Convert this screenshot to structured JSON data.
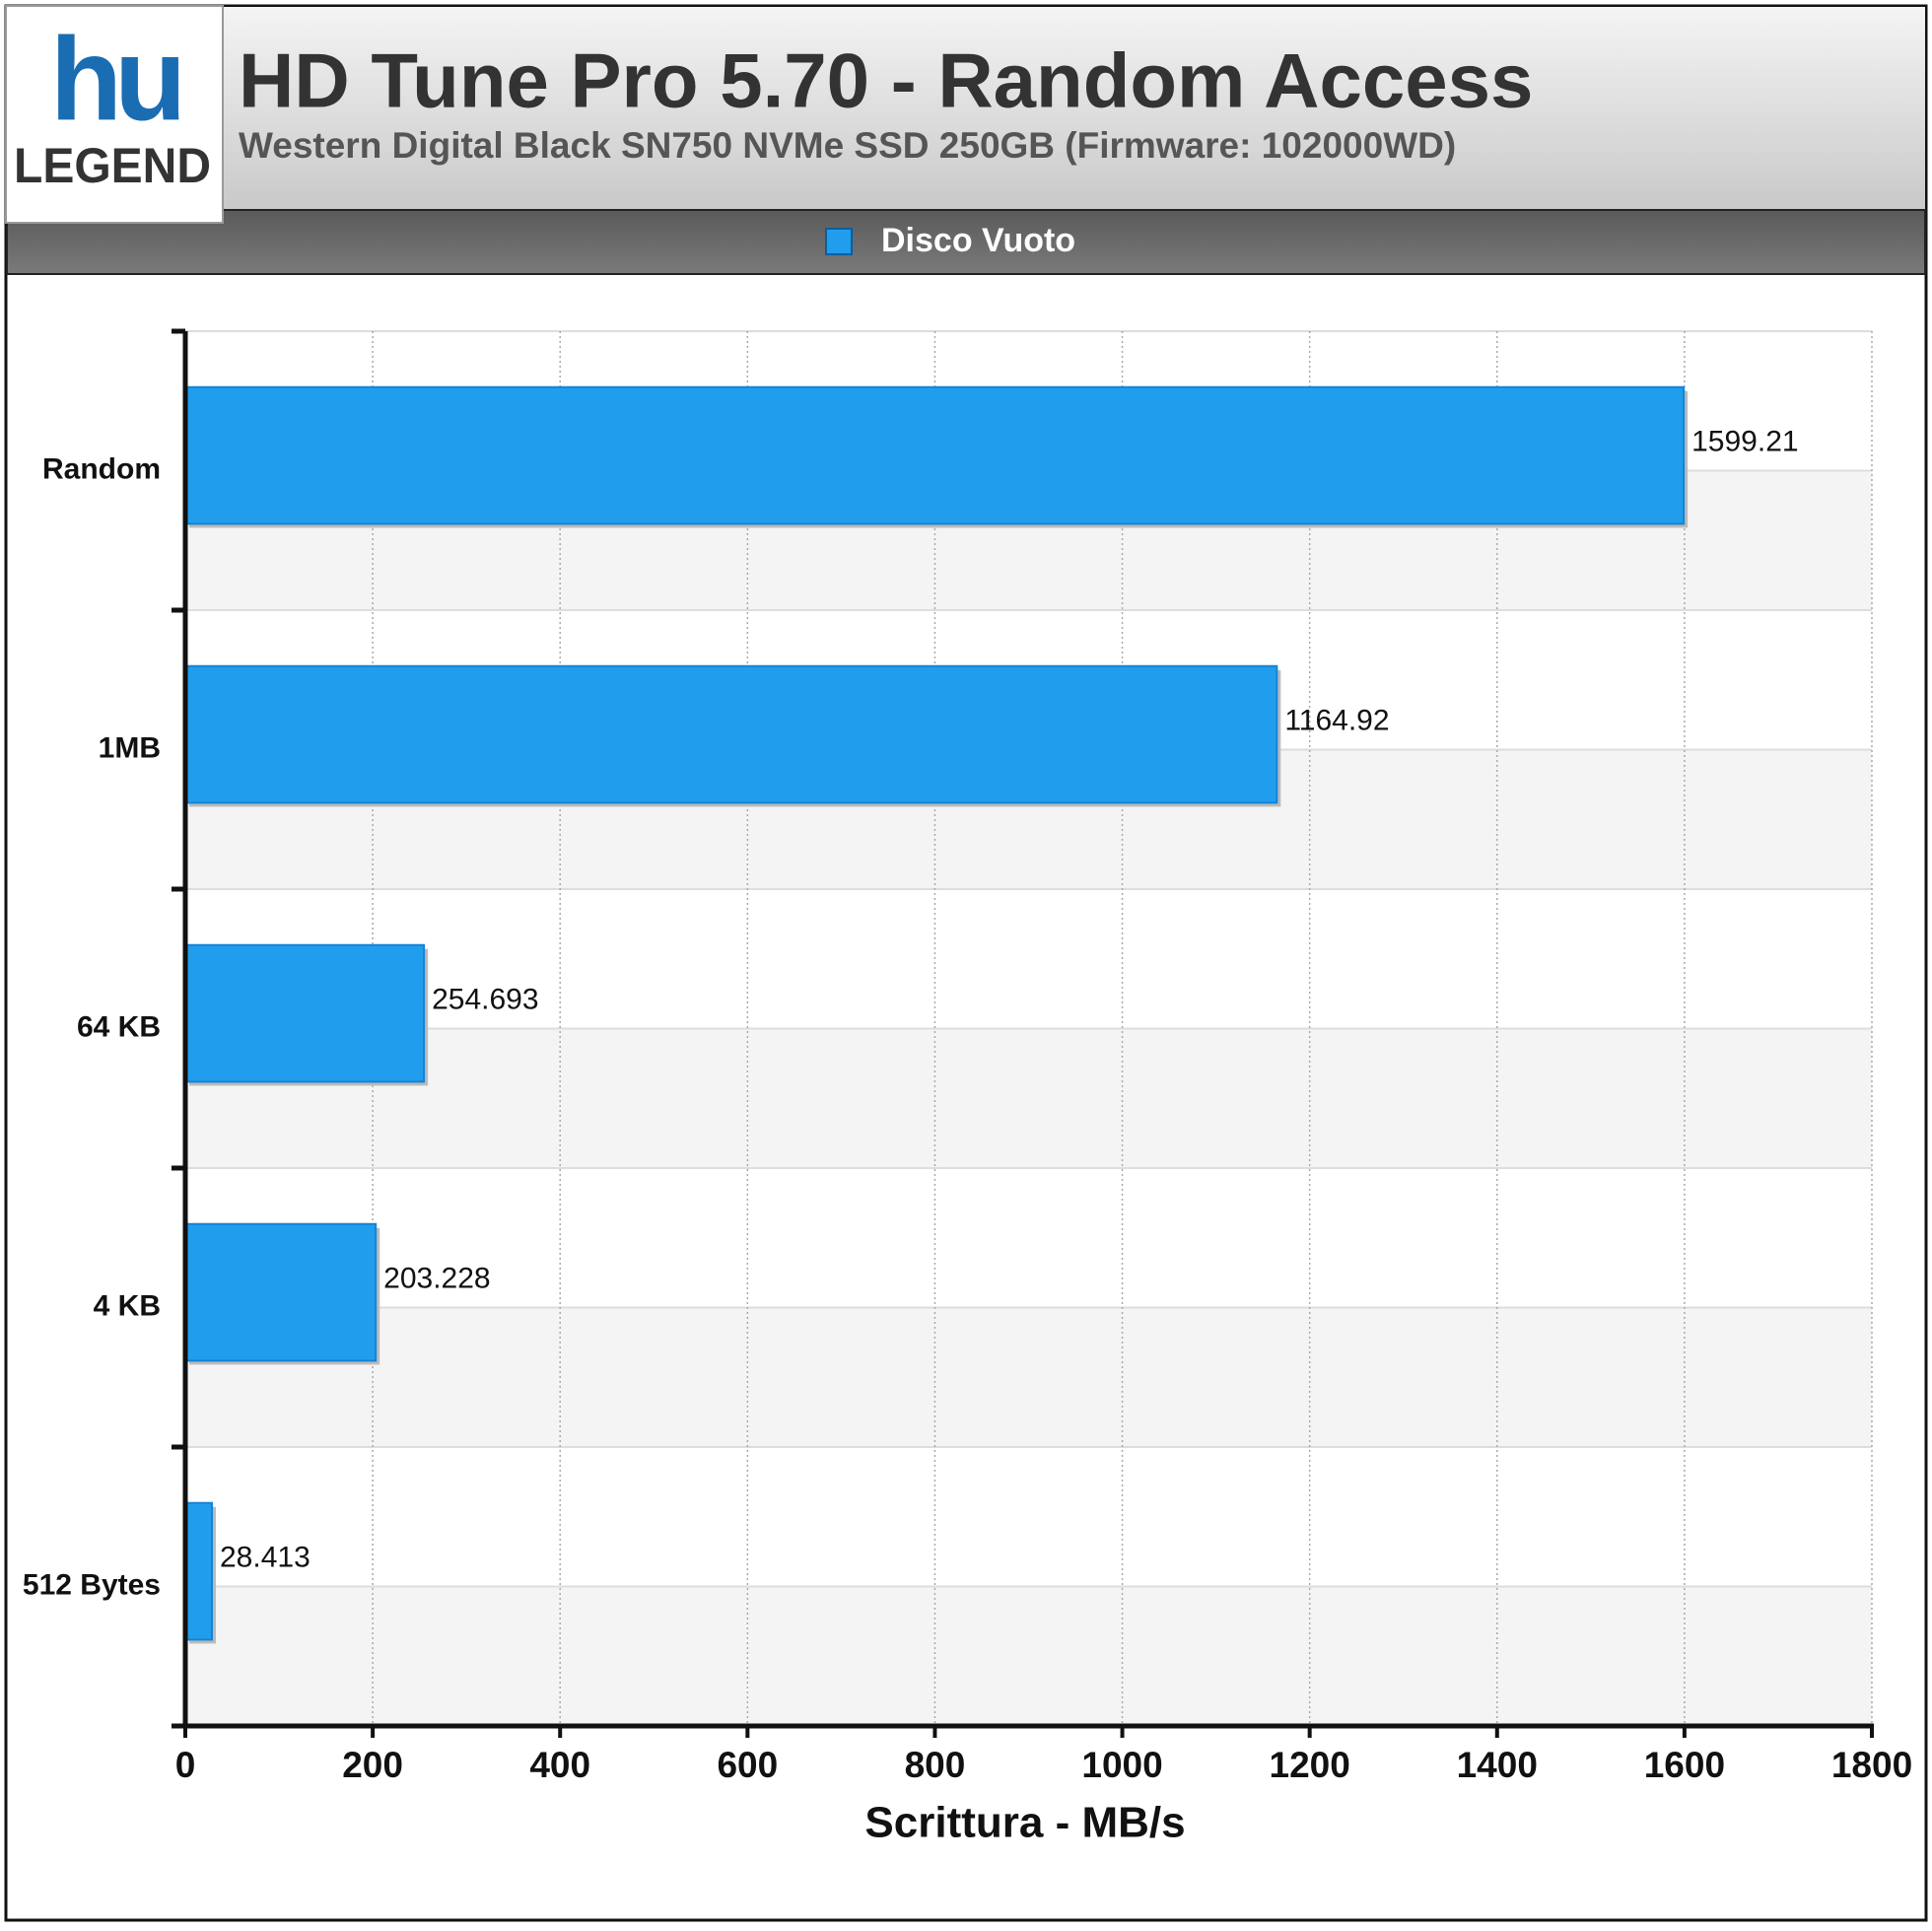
{
  "logo": {
    "mark": "hu",
    "text": "LEGEND"
  },
  "chart_data": {
    "type": "bar",
    "orientation": "horizontal",
    "title": "HD Tune Pro 5.70 - Random Access",
    "subtitle": "Western Digital Black SN750 NVMe SSD 250GB (Firmware: 102000WD)",
    "categories": [
      "Random",
      "1MB",
      "64 KB",
      "4 KB",
      "512 Bytes"
    ],
    "series": [
      {
        "name": "Disco Vuoto",
        "color": "#219ded",
        "values": [
          1599.21,
          1164.92,
          254.693,
          203.228,
          28.413
        ]
      }
    ],
    "xlabel": "Scrittura - MB/s",
    "xlim": [
      0,
      1800
    ],
    "xticks": [
      0,
      200,
      400,
      600,
      800,
      1000,
      1200,
      1400,
      1600,
      1800
    ],
    "grid": true
  }
}
